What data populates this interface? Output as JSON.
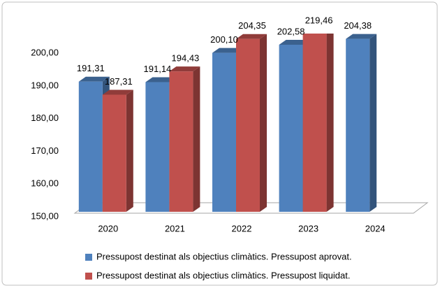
{
  "chart_data": {
    "type": "bar3d",
    "categories": [
      "2020",
      "2021",
      "2022",
      "2023",
      "2024"
    ],
    "series": [
      {
        "name": "Pressupost destinat als objectius climàtics. Pressupost aprovat.",
        "color": "#4f81bd",
        "values": [
          191.31,
          191.14,
          200.1,
          202.58,
          204.38
        ],
        "value_labels": [
          "191,31",
          "191,14",
          "200,10",
          "202,58",
          "204,38"
        ]
      },
      {
        "name": "Pressupost destinat als objectius climàtics. Pressupost liquidat.",
        "color": "#c0504d",
        "values": [
          187.31,
          194.43,
          204.35,
          219.46,
          null
        ],
        "value_labels": [
          "187,31",
          "194,43",
          "204,35",
          "219,46",
          null
        ]
      }
    ],
    "ylim": [
      150,
      206
    ],
    "yticks": [
      {
        "value": 150,
        "label": "150,00"
      },
      {
        "value": 160,
        "label": "160,00"
      },
      {
        "value": 170,
        "label": "170,00"
      },
      {
        "value": 180,
        "label": "180,00"
      },
      {
        "value": 190,
        "label": "190,00"
      },
      {
        "value": 200,
        "label": "200,00"
      }
    ],
    "legend": "bottom"
  }
}
